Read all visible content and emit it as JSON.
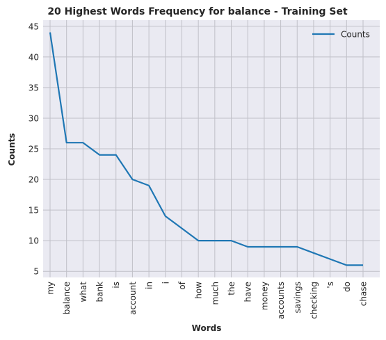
{
  "chart_data": {
    "type": "line",
    "title": "20 Highest Words Frequency for balance - Training Set",
    "xlabel": "Words",
    "ylabel": "Counts",
    "categories": [
      "my",
      "balance",
      "what",
      "bank",
      "is",
      "account",
      "in",
      "i",
      "of",
      "how",
      "much",
      "the",
      "have",
      "money",
      "accounts",
      "savings",
      "checking",
      "'s",
      "do",
      "chase"
    ],
    "series": [
      {
        "name": "Counts",
        "values": [
          44,
          26,
          26,
          24,
          24,
          20,
          19,
          14,
          12,
          10,
          10,
          10,
          9,
          9,
          9,
          9,
          8,
          7,
          6,
          6
        ]
      }
    ],
    "ylim": [
      4,
      46
    ],
    "yticks": [
      5,
      10,
      15,
      20,
      25,
      30,
      35,
      40,
      45
    ],
    "grid": true,
    "legend_position": "top-right",
    "colors": {
      "line": "#1f77b4",
      "plot_bg": "#eaeaf2",
      "grid": "#c0c0c8"
    }
  }
}
